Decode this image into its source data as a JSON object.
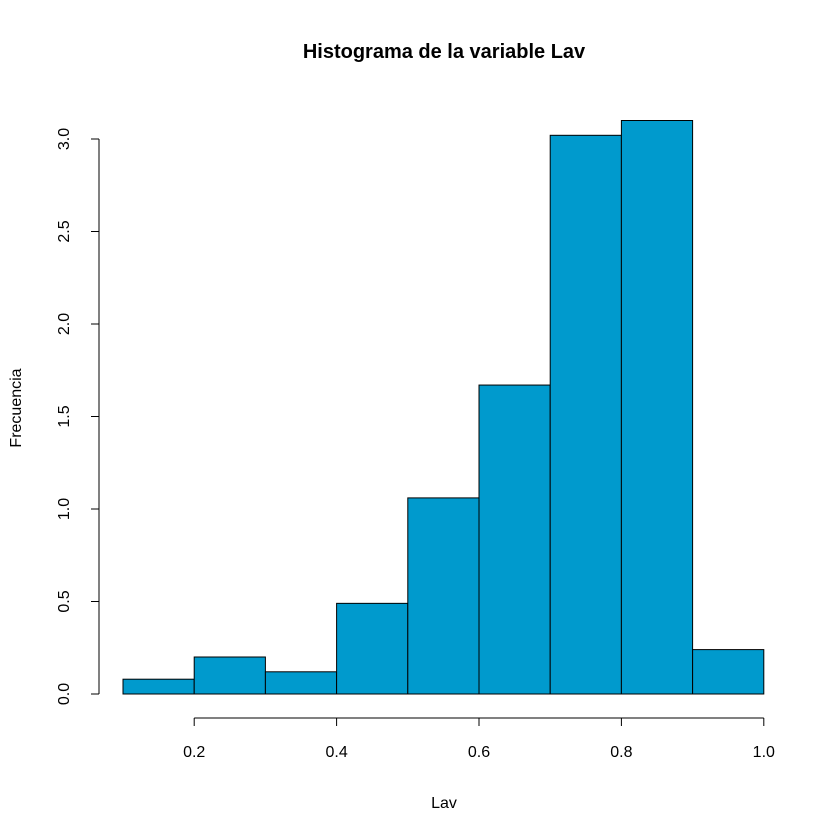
{
  "chart_data": {
    "type": "bar",
    "title": "Histograma de la variable Lav",
    "xlabel": "Lav",
    "ylabel": "Frecuencia",
    "bar_color": "#009ACD",
    "bins": [
      {
        "start": 0.1,
        "end": 0.2,
        "value": 0.08
      },
      {
        "start": 0.2,
        "end": 0.3,
        "value": 0.2
      },
      {
        "start": 0.3,
        "end": 0.4,
        "value": 0.12
      },
      {
        "start": 0.4,
        "end": 0.5,
        "value": 0.49
      },
      {
        "start": 0.5,
        "end": 0.6,
        "value": 1.06
      },
      {
        "start": 0.6,
        "end": 0.7,
        "value": 1.67
      },
      {
        "start": 0.7,
        "end": 0.8,
        "value": 3.02
      },
      {
        "start": 0.8,
        "end": 0.9,
        "value": 3.1
      },
      {
        "start": 0.9,
        "end": 1.0,
        "value": 0.24
      }
    ],
    "xlim": [
      0.1,
      1.0
    ],
    "ylim": [
      0,
      3.0
    ],
    "x_ticks": [
      0.2,
      0.4,
      0.6,
      0.8,
      1.0
    ],
    "x_tick_labels": [
      "0.2",
      "0.4",
      "0.6",
      "0.8",
      "1.0"
    ],
    "y_ticks": [
      0,
      0.5,
      1.0,
      1.5,
      2.0,
      2.5,
      3.0
    ],
    "y_tick_labels": [
      "0.0",
      "0.5",
      "1.0",
      "1.5",
      "2.0",
      "2.5",
      "3.0"
    ],
    "grid": false,
    "legend": "none"
  }
}
